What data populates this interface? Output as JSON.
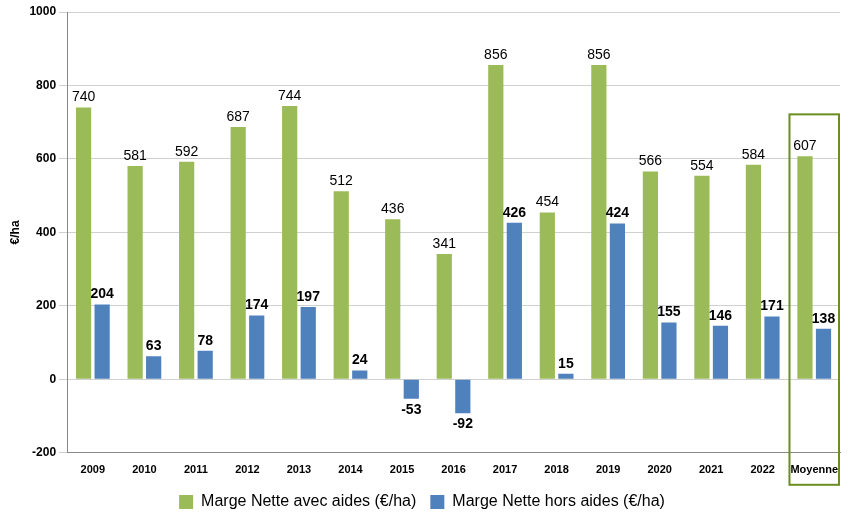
{
  "chart_data": {
    "type": "bar",
    "categories": [
      "2009",
      "2010",
      "2011",
      "2012",
      "2013",
      "2014",
      "2015",
      "2016",
      "2017",
      "2018",
      "2019",
      "2020",
      "2021",
      "2022",
      "Moyenne"
    ],
    "series": [
      {
        "name": "Marge Nette avec aides (€/ha)",
        "color": "#9bbb59",
        "values": [
          740,
          581,
          592,
          687,
          744,
          512,
          436,
          341,
          856,
          454,
          856,
          566,
          554,
          584,
          607
        ]
      },
      {
        "name": "Marge Nette hors aides (€/ha)",
        "color": "#4f81bd",
        "values": [
          204,
          63,
          78,
          174,
          197,
          24,
          -53,
          -92,
          426,
          15,
          424,
          155,
          146,
          171,
          138
        ]
      }
    ],
    "ylabel": "€/ha",
    "ylim": [
      -200,
      1000
    ],
    "yticks": [
      -200,
      0,
      200,
      400,
      600,
      800,
      1000
    ],
    "grid": true,
    "legend": "bottom",
    "data_labels": true
  }
}
